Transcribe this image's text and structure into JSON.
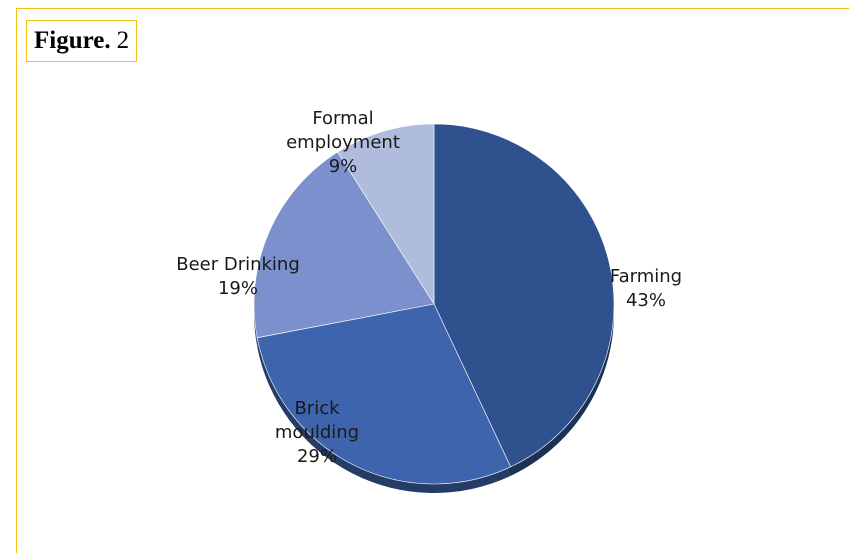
{
  "figure": {
    "label_bold": "Figure.",
    "label_number": "2"
  },
  "chart_data": {
    "type": "pie",
    "slices": [
      {
        "label_lines": [
          "Farming"
        ],
        "percent_label": "43%",
        "value": 43,
        "color": "#2f528f"
      },
      {
        "label_lines": [
          "Brick",
          "moulding"
        ],
        "percent_label": "29%",
        "value": 29,
        "color": "#3d64ac"
      },
      {
        "label_lines": [
          "Beer Drinking"
        ],
        "percent_label": "19%",
        "value": 19,
        "color": "#7b90cc"
      },
      {
        "label_lines": [
          "Formal",
          "employment"
        ],
        "percent_label": "9%",
        "value": 9,
        "color": "#b0bcdc"
      }
    ]
  }
}
